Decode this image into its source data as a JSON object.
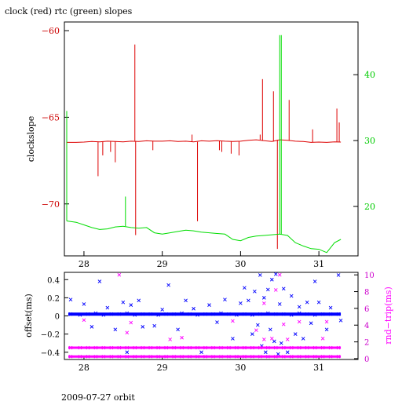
{
  "chart_data": [
    {
      "type": "line",
      "title": "clock (red) rtc (green) slopes",
      "ylabel": "clockslope",
      "xlim": [
        27.75,
        31.5
      ],
      "ylim": [
        -73.0,
        -59.5
      ],
      "y2lim": [
        12.5,
        48.0
      ],
      "x_ticks": [
        28,
        29,
        30,
        31
      ],
      "y_ticks": [
        -60,
        -65,
        -70
      ],
      "y2_ticks": [
        40,
        30,
        20
      ],
      "grid": false,
      "colors": {
        "axis": "#000000",
        "left_axis": "#cc0000",
        "right_axis": "#00cc00"
      },
      "series": [
        {
          "color": "#dd0000",
          "axis": "left",
          "x": [
            27.78,
            27.9,
            28.0,
            28.1,
            28.2,
            28.3,
            28.4,
            28.5,
            28.6,
            28.7,
            28.8,
            28.9,
            29.0,
            29.1,
            29.2,
            29.3,
            29.4,
            29.5,
            29.6,
            29.7,
            29.8,
            29.9,
            30.0,
            30.1,
            30.2,
            30.3,
            30.4,
            30.5,
            30.6,
            30.7,
            30.8,
            30.9,
            31.0,
            31.1,
            31.2,
            31.28
          ],
          "y": [
            -66.45,
            -66.45,
            -66.43,
            -66.4,
            -66.42,
            -66.38,
            -66.4,
            -66.42,
            -66.38,
            -66.4,
            -66.36,
            -66.38,
            -66.38,
            -66.36,
            -66.4,
            -66.38,
            -66.42,
            -66.36,
            -66.38,
            -66.35,
            -66.38,
            -66.4,
            -66.38,
            -66.33,
            -66.3,
            -66.35,
            -66.4,
            -66.3,
            -66.33,
            -66.38,
            -66.4,
            -66.45,
            -66.43,
            -66.45,
            -66.42,
            -66.43
          ],
          "spikes": [
            {
              "x": 28.18,
              "y": -68.4
            },
            {
              "x": 28.24,
              "y": -67.2
            },
            {
              "x": 28.34,
              "y": -67.0
            },
            {
              "x": 28.4,
              "y": -67.6
            },
            {
              "x": 28.65,
              "y": -60.8
            },
            {
              "x": 28.66,
              "y": -71.8
            },
            {
              "x": 28.88,
              "y": -66.9
            },
            {
              "x": 29.38,
              "y": -66.0
            },
            {
              "x": 29.45,
              "y": -71.0
            },
            {
              "x": 29.73,
              "y": -66.9
            },
            {
              "x": 29.76,
              "y": -67.0
            },
            {
              "x": 29.88,
              "y": -67.1
            },
            {
              "x": 29.98,
              "y": -67.2
            },
            {
              "x": 30.25,
              "y": -66.0
            },
            {
              "x": 30.28,
              "y": -62.8
            },
            {
              "x": 30.42,
              "y": -63.5
            },
            {
              "x": 30.47,
              "y": -72.6
            },
            {
              "x": 30.62,
              "y": -64.0
            },
            {
              "x": 30.92,
              "y": -65.7
            },
            {
              "x": 31.23,
              "y": -64.5
            },
            {
              "x": 31.26,
              "y": -65.3
            }
          ]
        },
        {
          "color": "#00dd00",
          "axis": "right",
          "x": [
            27.78,
            27.9,
            28.0,
            28.1,
            28.2,
            28.3,
            28.4,
            28.5,
            28.6,
            28.7,
            28.8,
            28.9,
            29.0,
            29.1,
            29.2,
            29.3,
            29.4,
            29.5,
            29.6,
            29.7,
            29.8,
            29.9,
            30.0,
            30.1,
            30.2,
            30.3,
            30.4,
            30.5,
            30.6,
            30.7,
            30.8,
            30.9,
            31.0,
            31.1,
            31.2,
            31.28
          ],
          "y": [
            17.8,
            17.6,
            17.2,
            16.8,
            16.5,
            16.6,
            16.9,
            17.0,
            16.8,
            16.7,
            16.8,
            16.0,
            15.8,
            16.0,
            16.2,
            16.4,
            16.3,
            16.1,
            16.0,
            15.9,
            15.8,
            15.0,
            14.8,
            15.3,
            15.5,
            15.6,
            15.7,
            15.8,
            15.6,
            14.5,
            14.0,
            13.6,
            13.5,
            13.0,
            14.5,
            15.0
          ],
          "spikes": [
            {
              "x": 27.78,
              "y": 34.5
            },
            {
              "x": 28.53,
              "y": 21.5
            },
            {
              "x": 30.5,
              "y": 46.0
            },
            {
              "x": 30.52,
              "y": 46.0
            }
          ]
        }
      ]
    },
    {
      "type": "scatter",
      "ylabel": "offset(ms)",
      "y2label": "rnd−trip(ms)",
      "xlim": [
        27.75,
        31.5
      ],
      "ylim": [
        -0.48,
        0.48
      ],
      "y2lim": [
        -0.1,
        10.3
      ],
      "x_ticks": [
        28,
        29,
        30,
        31
      ],
      "y_ticks": [
        0.4,
        0.2,
        0,
        -0.2,
        -0.4
      ],
      "y_tick_labels": [
        "0.4",
        "0.2",
        "0",
        "−0.2",
        "−0.4"
      ],
      "y2_ticks": [
        10,
        8,
        6,
        4,
        2,
        0
      ],
      "grid": false,
      "colors": {
        "axis": "#000000",
        "left_axis": "#0000cc",
        "right_axis": "#cc00cc"
      },
      "series": [
        {
          "color": "#0000ff",
          "axis": "left",
          "marker": "x",
          "points": [
            [
              27.83,
              0.02
            ],
            [
              27.95,
              0.01
            ],
            [
              28.05,
              0.02
            ],
            [
              28.15,
              0.03
            ],
            [
              28.25,
              0.01
            ],
            [
              28.35,
              0.02
            ],
            [
              28.45,
              0.02
            ],
            [
              28.55,
              0.03
            ],
            [
              28.65,
              0.01
            ],
            [
              28.75,
              0.02
            ],
            [
              28.85,
              0.02
            ],
            [
              28.95,
              0.01
            ],
            [
              29.05,
              0.02
            ],
            [
              29.15,
              0.02
            ],
            [
              29.25,
              0.03
            ],
            [
              29.35,
              0.02
            ],
            [
              29.45,
              0.01
            ],
            [
              29.55,
              0.02
            ],
            [
              29.65,
              0.02
            ],
            [
              29.75,
              0.03
            ],
            [
              29.85,
              0.02
            ],
            [
              29.95,
              0.01
            ],
            [
              30.05,
              0.02
            ],
            [
              30.15,
              0.01
            ],
            [
              30.25,
              0.02
            ],
            [
              30.35,
              0.03
            ],
            [
              30.45,
              0.02
            ],
            [
              30.55,
              0.02
            ],
            [
              30.65,
              0.01
            ],
            [
              30.75,
              0.03
            ],
            [
              30.85,
              0.02
            ],
            [
              30.95,
              0.01
            ],
            [
              31.05,
              0.02
            ],
            [
              31.15,
              0.02
            ],
            [
              31.25,
              0.02
            ],
            [
              27.83,
              0.18
            ],
            [
              28.0,
              0.13
            ],
            [
              28.1,
              -0.12
            ],
            [
              28.2,
              0.38
            ],
            [
              28.3,
              0.09
            ],
            [
              28.4,
              -0.15
            ],
            [
              28.5,
              0.15
            ],
            [
              28.55,
              -0.4
            ],
            [
              28.6,
              0.12
            ],
            [
              28.7,
              0.17
            ],
            [
              28.75,
              -0.12
            ],
            [
              28.9,
              -0.11
            ],
            [
              29.0,
              0.07
            ],
            [
              29.08,
              0.34
            ],
            [
              29.2,
              -0.15
            ],
            [
              29.3,
              0.17
            ],
            [
              29.4,
              0.08
            ],
            [
              29.5,
              -0.4
            ],
            [
              29.6,
              0.12
            ],
            [
              29.7,
              -0.07
            ],
            [
              29.8,
              0.18
            ],
            [
              29.9,
              -0.25
            ],
            [
              30.0,
              0.14
            ],
            [
              30.05,
              0.31
            ],
            [
              30.1,
              0.17
            ],
            [
              30.15,
              -0.2
            ],
            [
              30.18,
              0.27
            ],
            [
              30.22,
              -0.1
            ],
            [
              30.25,
              0.45
            ],
            [
              30.27,
              -0.33
            ],
            [
              30.3,
              0.2
            ],
            [
              30.32,
              -0.4
            ],
            [
              30.35,
              0.29
            ],
            [
              30.38,
              -0.15
            ],
            [
              30.4,
              0.4
            ],
            [
              30.43,
              -0.28
            ],
            [
              30.45,
              0.46
            ],
            [
              30.48,
              -0.42
            ],
            [
              30.5,
              0.13
            ],
            [
              30.52,
              -0.3
            ],
            [
              30.55,
              0.3
            ],
            [
              30.6,
              -0.4
            ],
            [
              30.65,
              0.22
            ],
            [
              30.7,
              -0.2
            ],
            [
              30.75,
              0.1
            ],
            [
              30.8,
              -0.25
            ],
            [
              30.85,
              0.15
            ],
            [
              30.9,
              -0.08
            ],
            [
              30.95,
              0.38
            ],
            [
              31.0,
              0.15
            ],
            [
              31.1,
              -0.15
            ],
            [
              31.15,
              0.09
            ],
            [
              31.25,
              0.45
            ],
            [
              31.28,
              -0.05
            ]
          ]
        },
        {
          "color": "#ff00ff",
          "axis": "right",
          "marker": "x",
          "points": [
            [
              27.83,
              1.3
            ],
            [
              27.95,
              1.3
            ],
            [
              28.05,
              1.3
            ],
            [
              28.15,
              1.3
            ],
            [
              28.25,
              1.3
            ],
            [
              28.35,
              1.3
            ],
            [
              28.45,
              1.3
            ],
            [
              28.55,
              1.3
            ],
            [
              28.65,
              1.3
            ],
            [
              28.75,
              1.3
            ],
            [
              28.85,
              1.3
            ],
            [
              28.95,
              1.3
            ],
            [
              29.05,
              1.3
            ],
            [
              29.15,
              1.3
            ],
            [
              29.25,
              1.3
            ],
            [
              29.35,
              1.3
            ],
            [
              29.45,
              1.3
            ],
            [
              29.55,
              1.3
            ],
            [
              29.65,
              1.3
            ],
            [
              29.75,
              1.3
            ],
            [
              29.85,
              1.3
            ],
            [
              29.95,
              1.3
            ],
            [
              30.05,
              1.3
            ],
            [
              30.15,
              1.3
            ],
            [
              30.25,
              1.3
            ],
            [
              30.35,
              1.3
            ],
            [
              30.45,
              1.3
            ],
            [
              30.55,
              1.3
            ],
            [
              30.65,
              1.3
            ],
            [
              30.75,
              1.3
            ],
            [
              30.85,
              1.3
            ],
            [
              30.95,
              1.3
            ],
            [
              31.05,
              1.3
            ],
            [
              31.15,
              1.3
            ],
            [
              31.25,
              1.3
            ],
            [
              27.83,
              0.25
            ],
            [
              27.95,
              0.25
            ],
            [
              28.05,
              0.25
            ],
            [
              28.15,
              0.25
            ],
            [
              28.25,
              0.25
            ],
            [
              28.35,
              0.25
            ],
            [
              28.45,
              0.25
            ],
            [
              28.55,
              0.25
            ],
            [
              28.65,
              0.25
            ],
            [
              28.75,
              0.25
            ],
            [
              28.85,
              0.25
            ],
            [
              28.95,
              0.25
            ],
            [
              29.05,
              0.25
            ],
            [
              29.15,
              0.25
            ],
            [
              29.25,
              0.25
            ],
            [
              29.35,
              0.25
            ],
            [
              29.45,
              0.25
            ],
            [
              29.55,
              0.25
            ],
            [
              29.65,
              0.25
            ],
            [
              29.75,
              0.25
            ],
            [
              29.85,
              0.25
            ],
            [
              29.95,
              0.25
            ],
            [
              30.05,
              0.25
            ],
            [
              30.15,
              0.25
            ],
            [
              30.25,
              0.25
            ],
            [
              30.35,
              0.25
            ],
            [
              30.45,
              0.25
            ],
            [
              30.55,
              0.25
            ],
            [
              30.65,
              0.25
            ],
            [
              30.75,
              0.25
            ],
            [
              30.85,
              0.25
            ],
            [
              30.95,
              0.25
            ],
            [
              31.05,
              0.25
            ],
            [
              31.15,
              0.25
            ],
            [
              31.25,
              0.25
            ],
            [
              28.45,
              10.0
            ],
            [
              28.0,
              4.6
            ],
            [
              28.6,
              4.3
            ],
            [
              29.9,
              4.5
            ],
            [
              30.3,
              6.6
            ],
            [
              30.45,
              8.2
            ],
            [
              30.5,
              10.0
            ],
            [
              30.75,
              4.4
            ],
            [
              31.1,
              4.4
            ],
            [
              28.55,
              3.1
            ],
            [
              29.25,
              2.5
            ],
            [
              29.1,
              2.3
            ],
            [
              30.3,
              2.3
            ],
            [
              30.4,
              2.4
            ],
            [
              30.6,
              2.3
            ],
            [
              31.05,
              2.4
            ],
            [
              30.2,
              3.4
            ],
            [
              30.55,
              4.1
            ]
          ]
        }
      ]
    }
  ],
  "footer": {
    "caption": "2009-07-27 orbit"
  }
}
